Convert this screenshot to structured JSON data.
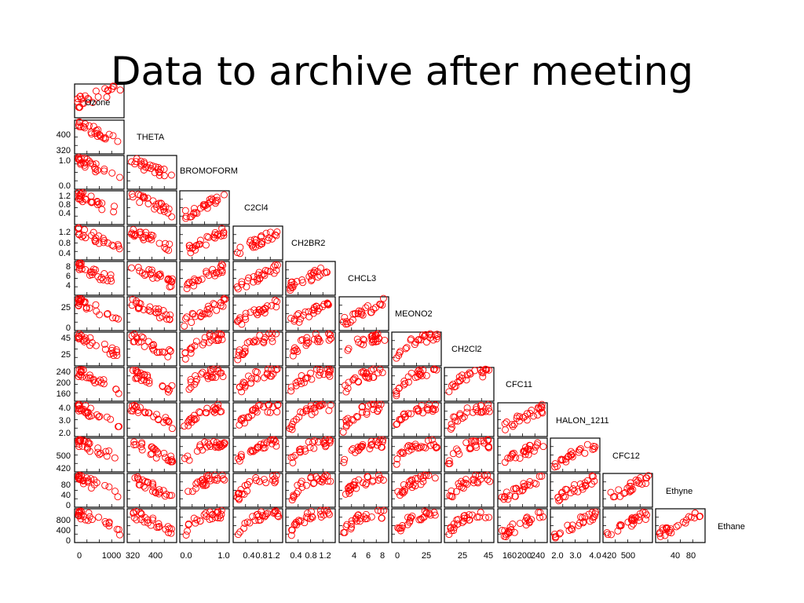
{
  "title": "Data to archive after meeting",
  "chart_data": {
    "type": "scatter",
    "subtype": "scatterplot-matrix (lower triangle)",
    "marker_color": "#ff0000",
    "marker": "open-circle",
    "variables": [
      "Ozone",
      "THETA",
      "BROMOFORM",
      "C2Cl4",
      "CH2BR2",
      "CHCL3",
      "MEONO2",
      "CH2Cl2",
      "CFC11",
      "HALON_1211",
      "CFC12",
      "Ethyne",
      "Ethane"
    ],
    "row_axis_ticks": [
      [
        "400",
        "320"
      ],
      [
        "1.0",
        "0.0"
      ],
      [
        "1.2",
        "0.8",
        "0.4"
      ],
      [
        "1.2",
        "0.8",
        "0.4"
      ],
      [
        "8",
        "6",
        "4"
      ],
      [
        "25",
        "0"
      ],
      [
        "45",
        "25"
      ],
      [
        "240",
        "200",
        "160"
      ],
      [
        "4.0",
        "3.0",
        "2.0"
      ],
      [
        "500",
        "420"
      ],
      [
        "80",
        "40",
        "0"
      ],
      [
        "800",
        "400",
        "0"
      ]
    ],
    "column_axis_ticks": [
      [
        "0",
        "1000"
      ],
      [
        "320",
        "400"
      ],
      [
        "0.0",
        "1.0"
      ],
      [
        "0.4",
        "0.8",
        "1.2"
      ],
      [
        "0.4",
        "0.8",
        "1.2"
      ],
      [
        "4",
        "6",
        "8"
      ],
      [
        "0",
        "25"
      ],
      [
        "25",
        "45"
      ],
      [
        "160",
        "200",
        "240"
      ],
      [
        "2.0",
        "3.0",
        "4.0"
      ],
      [
        "420",
        "500"
      ],
      [
        "40",
        "80"
      ]
    ]
  }
}
